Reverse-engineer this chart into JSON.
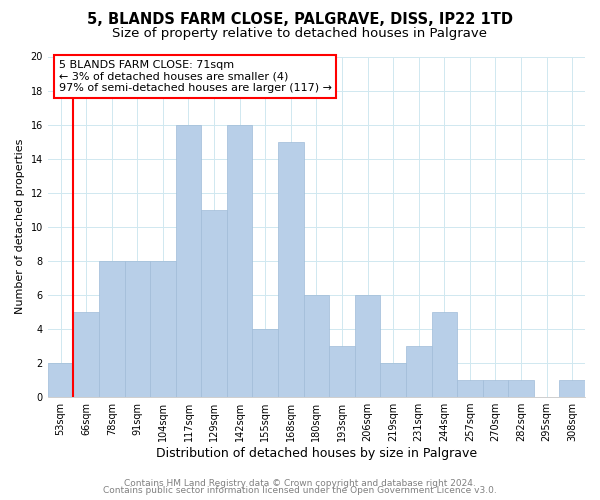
{
  "title": "5, BLANDS FARM CLOSE, PALGRAVE, DISS, IP22 1TD",
  "subtitle": "Size of property relative to detached houses in Palgrave",
  "xlabel": "Distribution of detached houses by size in Palgrave",
  "ylabel": "Number of detached properties",
  "bin_labels": [
    "53sqm",
    "66sqm",
    "78sqm",
    "91sqm",
    "104sqm",
    "117sqm",
    "129sqm",
    "142sqm",
    "155sqm",
    "168sqm",
    "180sqm",
    "193sqm",
    "206sqm",
    "219sqm",
    "231sqm",
    "244sqm",
    "257sqm",
    "270sqm",
    "282sqm",
    "295sqm",
    "308sqm"
  ],
  "bar_heights": [
    2,
    5,
    8,
    8,
    8,
    16,
    11,
    16,
    4,
    15,
    6,
    3,
    6,
    2,
    3,
    5,
    1,
    1,
    1,
    0,
    1
  ],
  "bar_color": "#b8cfe8",
  "bar_edge_color": "#a0bcd8",
  "ylim": [
    0,
    20
  ],
  "yticks": [
    0,
    2,
    4,
    6,
    8,
    10,
    12,
    14,
    16,
    18,
    20
  ],
  "red_line_x": 1,
  "annotation_title": "5 BLANDS FARM CLOSE: 71sqm",
  "annotation_line1": "← 3% of detached houses are smaller (4)",
  "annotation_line2": "97% of semi-detached houses are larger (117) →",
  "footer1": "Contains HM Land Registry data © Crown copyright and database right 2024.",
  "footer2": "Contains public sector information licensed under the Open Government Licence v3.0.",
  "title_fontsize": 10.5,
  "subtitle_fontsize": 9.5,
  "xlabel_fontsize": 9,
  "ylabel_fontsize": 8,
  "tick_fontsize": 7,
  "annotation_fontsize": 8,
  "footer_fontsize": 6.5,
  "grid_color": "#d0e8f0",
  "fig_width": 6.0,
  "fig_height": 5.0,
  "fig_dpi": 100
}
